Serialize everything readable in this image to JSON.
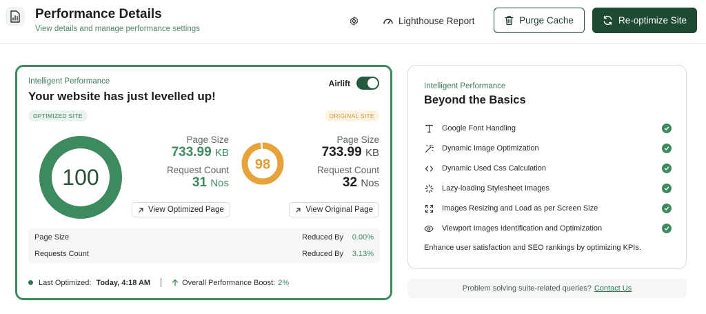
{
  "header": {
    "title": "Performance Details",
    "subtitle": "View details and manage performance settings",
    "app_icon": "file-chart-icon",
    "settings_icon": "gear-icon",
    "lighthouse_label": "Lighthouse Report",
    "purge_label": "Purge Cache",
    "reoptimize_label": "Re-optimize Site"
  },
  "colors": {
    "accent_dark": "#1e4a33",
    "accent_green": "#3c8a5e",
    "original_orange": "#e8a23a"
  },
  "perf_card": {
    "label": "Intelligent Performance",
    "heading": "Your website has just levelled up!",
    "airlift_label": "Airlift",
    "airlift_on": true,
    "optimized_pill": "OPTIMIZED SITE",
    "original_pill": "ORIGINAL SITE",
    "optimized": {
      "score": "100",
      "score_fraction": 1.0,
      "page_size_label": "Page Size",
      "page_size_value": "733.99",
      "page_size_unit": "KB",
      "request_label": "Request Count",
      "request_value": "31",
      "request_unit": "Nos",
      "view_label": "View Optimized Page"
    },
    "original": {
      "score": "98",
      "score_fraction": 0.98,
      "page_size_label": "Page Size",
      "page_size_value": "733.99",
      "page_size_unit": "KB",
      "request_label": "Request Count",
      "request_value": "32",
      "request_unit": "Nos",
      "view_label": "View Original Page"
    },
    "summary": [
      {
        "label": "Page Size",
        "reduced_label": "Reduced By",
        "value": "0.00%"
      },
      {
        "label": "Requests Count",
        "reduced_label": "Reduced By",
        "value": "3.13%"
      }
    ],
    "last_optimized_label": "Last Optimized:",
    "last_optimized_value": "Today, 4:18 AM",
    "boost_label": "Overall Performance Boost:",
    "boost_value": "2%"
  },
  "basics_card": {
    "label": "Intelligent Performance",
    "heading": "Beyond the Basics",
    "features": [
      {
        "label": "Google Font Handling",
        "icon": "text-type-icon"
      },
      {
        "label": "Dynamic Image Optimization",
        "icon": "magic-wand-icon"
      },
      {
        "label": "Dynamic Used Css Calculation",
        "icon": "code-icon"
      },
      {
        "label": "Lazy-loading Stylesheet Images",
        "icon": "loader-icon"
      },
      {
        "label": "Images Resizing and Load as per Screen Size",
        "icon": "expand-icon"
      },
      {
        "label": "Viewport Images Identification and Optimization",
        "icon": "eye-icon"
      }
    ],
    "footer": "Enhance user satisfaction and SEO rankings by optimizing KPIs."
  },
  "help": {
    "text": "Problem solving suite-related queries?",
    "link": "Contact Us"
  }
}
